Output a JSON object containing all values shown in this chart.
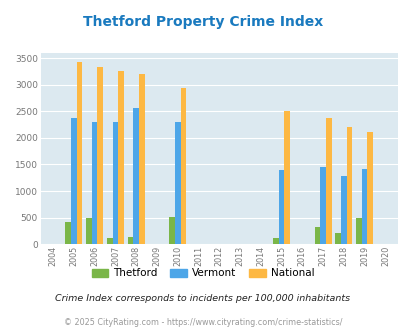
{
  "title": "Thetford Property Crime Index",
  "years": [
    2004,
    2005,
    2006,
    2007,
    2008,
    2009,
    2010,
    2011,
    2012,
    2013,
    2014,
    2015,
    2016,
    2017,
    2018,
    2019,
    2020
  ],
  "thetford": [
    0,
    420,
    500,
    120,
    140,
    0,
    510,
    0,
    0,
    0,
    0,
    120,
    0,
    330,
    210,
    490,
    0
  ],
  "vermont": [
    0,
    2370,
    2300,
    2300,
    2560,
    0,
    2290,
    0,
    0,
    0,
    0,
    1390,
    0,
    1450,
    1280,
    1420,
    0
  ],
  "national": [
    0,
    3420,
    3330,
    3250,
    3200,
    0,
    2940,
    0,
    0,
    0,
    0,
    2500,
    0,
    2380,
    2200,
    2110,
    0
  ],
  "bar_width": 0.27,
  "thetford_color": "#7ab648",
  "vermont_color": "#4da6e8",
  "national_color": "#fdb843",
  "bg_color": "#dce9f0",
  "grid_color": "#ffffff",
  "title_color": "#1a7abf",
  "ylim": [
    0,
    3600
  ],
  "yticks": [
    0,
    500,
    1000,
    1500,
    2000,
    2500,
    3000,
    3500
  ],
  "subtitle": "Crime Index corresponds to incidents per 100,000 inhabitants",
  "footer": "© 2025 CityRating.com - https://www.cityrating.com/crime-statistics/"
}
